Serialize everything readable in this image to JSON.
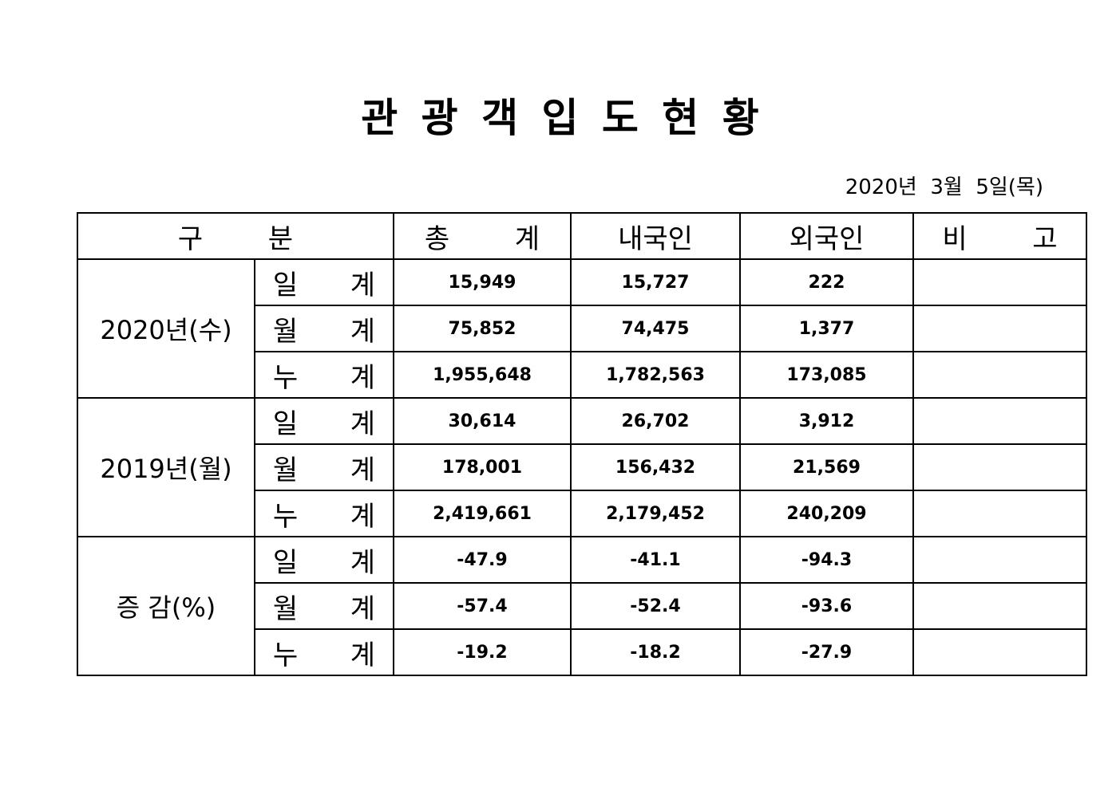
{
  "header": {
    "title": "관 광 객 입 도 현 황",
    "date": "2020년  3월  5일(목)"
  },
  "table": {
    "columns": [
      "구  분",
      "총  계",
      "내국인",
      "외국인",
      "비  고"
    ],
    "groups": [
      {
        "label": "2020년(수)",
        "rows": [
          {
            "label": "일  계",
            "values": [
              "15,949",
              "15,727",
              "222"
            ]
          },
          {
            "label": "월  계",
            "values": [
              "75,852",
              "74,475",
              "1,377"
            ]
          },
          {
            "label": "누  계",
            "values": [
              "1,955,648",
              "1,782,563",
              "173,085"
            ]
          }
        ]
      },
      {
        "label": "2019년(월)",
        "rows": [
          {
            "label": "일  계",
            "values": [
              "30,614",
              "26,702",
              "3,912"
            ]
          },
          {
            "label": "월  계",
            "values": [
              "178,001",
              "156,432",
              "21,569"
            ]
          },
          {
            "label": "누  계",
            "values": [
              "2,419,661",
              "2,179,452",
              "240,209"
            ]
          }
        ]
      },
      {
        "label": "증 감(%)",
        "rows": [
          {
            "label": "일  계",
            "values": [
              "-47.9",
              "-41.1",
              "-94.3"
            ]
          },
          {
            "label": "월  계",
            "values": [
              "-57.4",
              "-52.4",
              "-93.6"
            ]
          },
          {
            "label": "누  계",
            "values": [
              "-19.2",
              "-18.2",
              "-27.9"
            ]
          }
        ]
      }
    ]
  }
}
